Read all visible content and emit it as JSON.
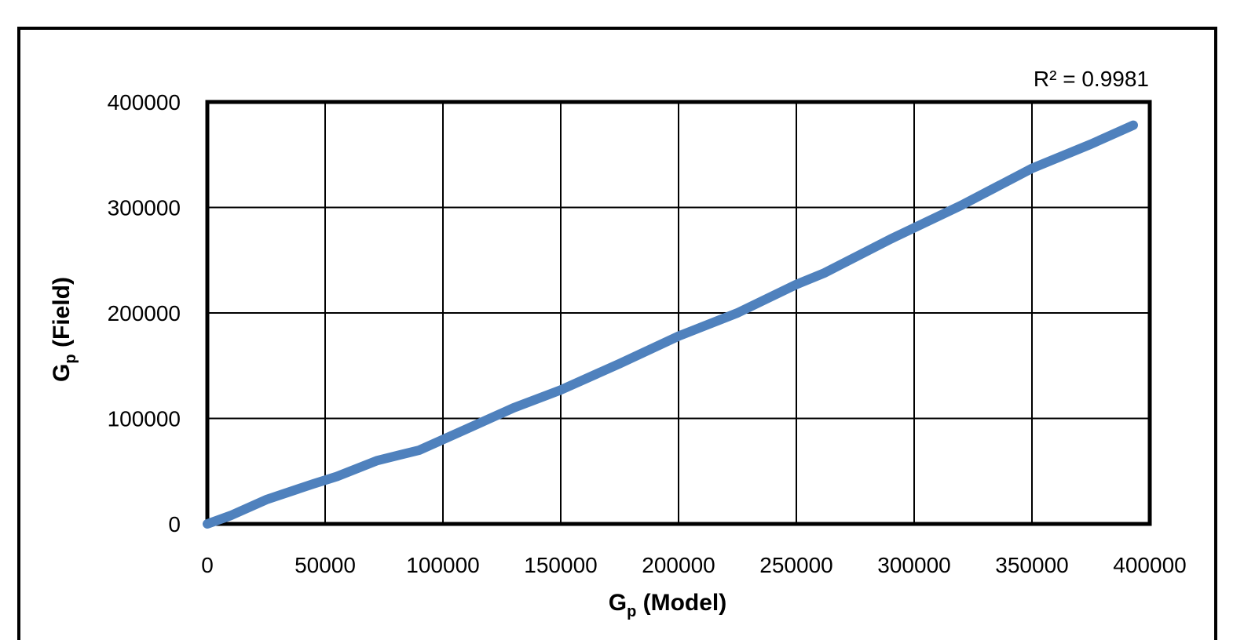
{
  "chart_data": {
    "type": "line",
    "title": "",
    "xlabel": {
      "main": "G",
      "sub": "p",
      "rest": " (Model)"
    },
    "ylabel": {
      "main": "G",
      "sub": "p",
      "rest": " (Field)"
    },
    "xlim": [
      0,
      400000
    ],
    "ylim": [
      0,
      400000
    ],
    "x_ticks": [
      "0",
      "50000",
      "100000",
      "150000",
      "200000",
      "250000",
      "300000",
      "350000",
      "400000"
    ],
    "y_ticks": [
      "0",
      "100000",
      "200000",
      "300000",
      "400000"
    ],
    "grid": true,
    "annotation": "R² = 0.9981",
    "line_color": "#4F81BD",
    "series": [
      {
        "x": [
          0,
          10000,
          25000,
          45000,
          55000,
          72000,
          90000,
          110000,
          130000,
          150000,
          175000,
          200000,
          225000,
          250000,
          262000,
          290000,
          320000,
          350000,
          375000,
          393000
        ],
        "y": [
          0,
          8000,
          23000,
          38000,
          45000,
          60000,
          70000,
          90000,
          110000,
          127000,
          152000,
          178000,
          200000,
          227000,
          238000,
          270000,
          302000,
          337000,
          360000,
          378000
        ]
      }
    ]
  }
}
